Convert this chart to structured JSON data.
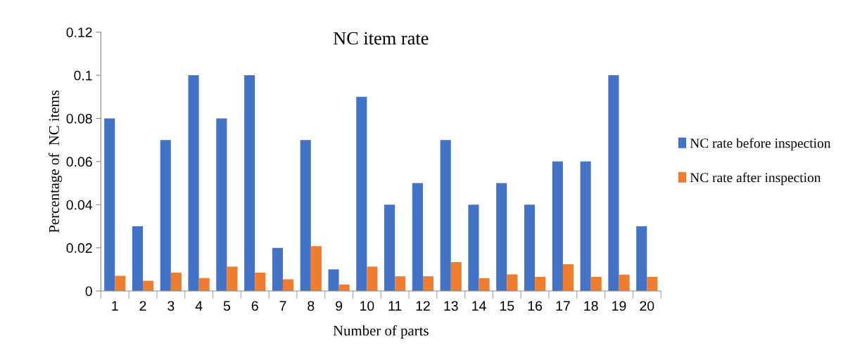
{
  "chart_data": {
    "type": "bar",
    "title": "NC item rate",
    "xlabel": "Number of parts",
    "ylabel": "Percentage of  NC items",
    "categories": [
      "1",
      "2",
      "3",
      "4",
      "5",
      "6",
      "7",
      "8",
      "9",
      "10",
      "11",
      "12",
      "13",
      "14",
      "15",
      "16",
      "17",
      "18",
      "19",
      "20"
    ],
    "series": [
      {
        "name": "NC rate before inspection",
        "color": "#4472c4",
        "values": [
          0.08,
          0.03,
          0.07,
          0.1,
          0.08,
          0.1,
          0.02,
          0.07,
          0.01,
          0.09,
          0.04,
          0.05,
          0.07,
          0.04,
          0.05,
          0.04,
          0.06,
          0.06,
          0.1,
          0.03
        ]
      },
      {
        "name": "NC rate after inspection",
        "color": "#ed7d31",
        "values": [
          0.007,
          0.0047,
          0.0085,
          0.006,
          0.0113,
          0.0085,
          0.0054,
          0.0208,
          0.003,
          0.0113,
          0.0068,
          0.0068,
          0.0134,
          0.0059,
          0.0077,
          0.0065,
          0.0124,
          0.0065,
          0.0076,
          0.0065
        ]
      }
    ],
    "ylim": [
      0,
      0.12
    ],
    "yticks": [
      0,
      0.02,
      0.04,
      0.06,
      0.08,
      0.1,
      0.12
    ],
    "grid": false,
    "legend": "right"
  }
}
